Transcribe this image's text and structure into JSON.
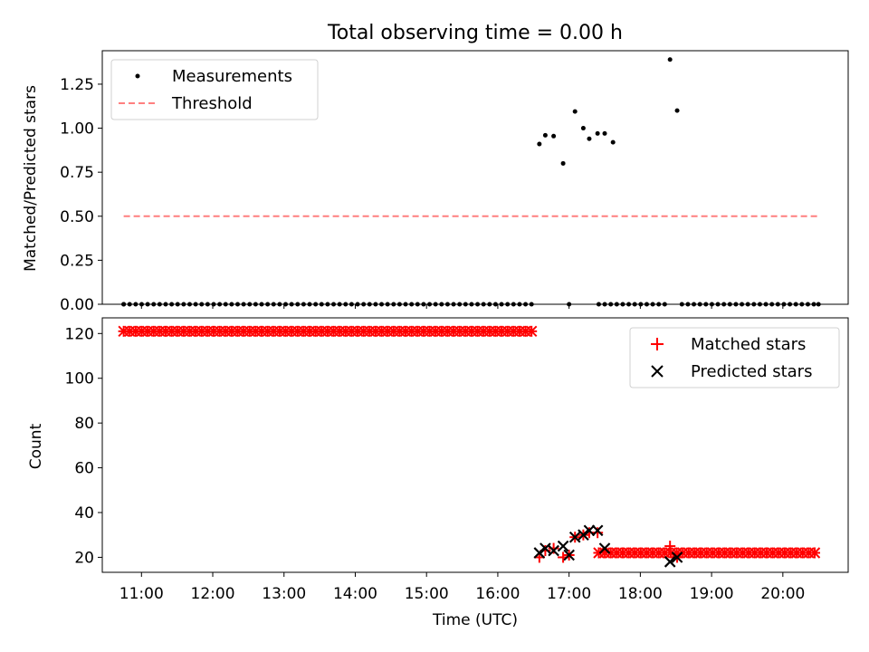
{
  "chart_data": {
    "title": "Total observing time = 0.00 h",
    "xlabel": "Time (UTC)",
    "x_ticks": [
      "11:00",
      "12:00",
      "13:00",
      "14:00",
      "15:00",
      "16:00",
      "17:00",
      "18:00",
      "19:00",
      "20:00"
    ],
    "panels": [
      {
        "type": "scatter",
        "ylabel": "Matched/Predicted stars",
        "ylim": [
          0,
          1.44
        ],
        "yticks": [
          0.0,
          0.25,
          0.5,
          0.75,
          1.0,
          1.25
        ],
        "ytick_labels": [
          "0.00",
          "0.25",
          "0.50",
          "0.75",
          "1.00",
          "1.25"
        ],
        "legend": {
          "placement": "upper-left",
          "entries": [
            "Measurements",
            "Threshold"
          ]
        },
        "colors": {
          "measurements": "#000000",
          "threshold": "#ff7f7f"
        },
        "threshold": {
          "value": 0.5,
          "x_start": "10:45",
          "x_end": "20:30"
        },
        "series": [
          {
            "name": "Measurements",
            "x": [
              "10:45",
              "16:35",
              "16:40",
              "16:47",
              "16:55",
              "17:00",
              "17:05",
              "17:12",
              "17:17",
              "17:24",
              "17:30",
              "17:37",
              "18:25",
              "18:31",
              "20:30"
            ],
            "y": [
              0,
              0.91,
              0.96,
              0.955,
              0.8,
              0,
              1.095,
              1.0,
              0.94,
              0.97,
              0.97,
              0.92,
              1.39,
              1.1,
              0
            ],
            "note_zero_runs": [
              [
                "10:45",
                "16:30"
              ],
              [
                "17:25",
                "18:22"
              ],
              [
                "18:35",
                "20:30"
              ]
            ]
          }
        ]
      },
      {
        "type": "scatter",
        "ylabel": "Count",
        "ylim": [
          13.3,
          127
        ],
        "yticks": [
          20,
          40,
          60,
          80,
          100,
          120
        ],
        "ytick_labels": [
          "20",
          "40",
          "60",
          "80",
          "100",
          "120"
        ],
        "legend": {
          "placement": "upper-right",
          "entries": [
            "Matched stars",
            "Predicted stars"
          ]
        },
        "colors": {
          "matched": "#ff0000",
          "predicted": "#000000"
        },
        "series": [
          {
            "name": "Matched stars",
            "runs": [
              {
                "x_start": "10:45",
                "x_end": "16:30",
                "y": 121
              },
              {
                "x_start": "17:25",
                "x_end": "20:30",
                "y": 22
              }
            ],
            "x": [
              "16:35",
              "16:40",
              "16:47",
              "16:55",
              "17:00",
              "17:05",
              "17:12",
              "17:17",
              "17:24",
              "18:25",
              "18:31"
            ],
            "y": [
              20,
              23,
              24,
              20,
              21,
              29,
              30,
              31,
              31,
              25,
              20
            ]
          },
          {
            "name": "Predicted stars",
            "x": [
              "16:35",
              "16:40",
              "16:47",
              "16:55",
              "17:00",
              "17:05",
              "17:12",
              "17:17",
              "17:24",
              "17:30",
              "18:25",
              "18:31"
            ],
            "y": [
              22,
              24,
              23,
              25,
              21,
              29,
              30,
              32,
              32,
              24,
              18,
              20
            ]
          }
        ]
      }
    ]
  }
}
